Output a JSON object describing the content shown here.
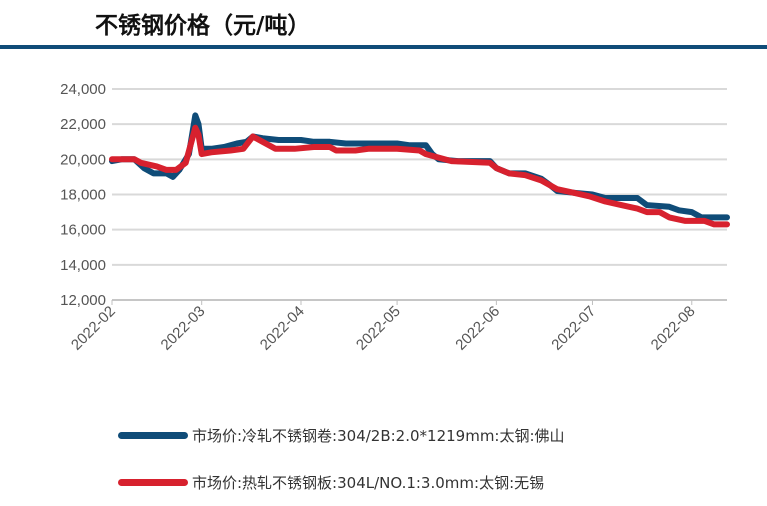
{
  "title": "不锈钢价格（元/吨）",
  "chart_data": {
    "type": "line",
    "title": "不锈钢价格（元/吨）",
    "ylim": [
      12000,
      24000
    ],
    "yticks": [
      "12,000",
      "14,000",
      "16,000",
      "18,000",
      "20,000",
      "22,000",
      "24,000"
    ],
    "xlim": [
      "2022-02-01",
      "2022-08-12"
    ],
    "xticks": [
      "2022-02",
      "2022-03",
      "2022-04",
      "2022-05",
      "2022-06",
      "2022-07",
      "2022-08"
    ],
    "grid": "horizontal",
    "legend_position": "bottom",
    "series": [
      {
        "name": "市场价:冷轧不锈钢卷:304/2B:2.0*1219mm:太钢:佛山",
        "color": "#0f4c78",
        "points": [
          [
            "2022-02-01",
            19900
          ],
          [
            "2022-02-04",
            20000
          ],
          [
            "2022-02-08",
            20000
          ],
          [
            "2022-02-11",
            19500
          ],
          [
            "2022-02-14",
            19200
          ],
          [
            "2022-02-18",
            19200
          ],
          [
            "2022-02-20",
            19000
          ],
          [
            "2022-02-22",
            19400
          ],
          [
            "2022-02-25",
            20300
          ],
          [
            "2022-02-27",
            22500
          ],
          [
            "2022-02-28",
            22000
          ],
          [
            "2022-03-01",
            20600
          ],
          [
            "2022-03-04",
            20600
          ],
          [
            "2022-03-08",
            20700
          ],
          [
            "2022-03-12",
            20900
          ],
          [
            "2022-03-15",
            21000
          ],
          [
            "2022-03-17",
            21300
          ],
          [
            "2022-03-20",
            21200
          ],
          [
            "2022-03-25",
            21100
          ],
          [
            "2022-04-01",
            21100
          ],
          [
            "2022-04-05",
            21000
          ],
          [
            "2022-04-10",
            21000
          ],
          [
            "2022-04-15",
            20900
          ],
          [
            "2022-05-01",
            20900
          ],
          [
            "2022-05-05",
            20800
          ],
          [
            "2022-05-10",
            20800
          ],
          [
            "2022-05-12",
            20300
          ],
          [
            "2022-05-14",
            20000
          ],
          [
            "2022-05-20",
            19900
          ],
          [
            "2022-05-30",
            19900
          ],
          [
            "2022-06-01",
            19500
          ],
          [
            "2022-06-05",
            19200
          ],
          [
            "2022-06-10",
            19200
          ],
          [
            "2022-06-15",
            18900
          ],
          [
            "2022-06-18",
            18500
          ],
          [
            "2022-06-20",
            18200
          ],
          [
            "2022-06-25",
            18100
          ],
          [
            "2022-07-01",
            18000
          ],
          [
            "2022-07-05",
            17800
          ],
          [
            "2022-07-15",
            17800
          ],
          [
            "2022-07-18",
            17400
          ],
          [
            "2022-07-25",
            17300
          ],
          [
            "2022-07-28",
            17100
          ],
          [
            "2022-08-01",
            17000
          ],
          [
            "2022-08-04",
            16700
          ],
          [
            "2022-08-12",
            16700
          ]
        ]
      },
      {
        "name": "市场价:热轧不锈钢板:304L/NO.1:3.0mm:太钢:无锡",
        "color": "#d7212e",
        "points": [
          [
            "2022-02-01",
            20000
          ],
          [
            "2022-02-08",
            20000
          ],
          [
            "2022-02-10",
            19800
          ],
          [
            "2022-02-15",
            19600
          ],
          [
            "2022-02-18",
            19400
          ],
          [
            "2022-02-21",
            19400
          ],
          [
            "2022-02-24",
            19800
          ],
          [
            "2022-02-27",
            21800
          ],
          [
            "2022-02-28",
            21400
          ],
          [
            "2022-03-01",
            20300
          ],
          [
            "2022-03-04",
            20400
          ],
          [
            "2022-03-10",
            20500
          ],
          [
            "2022-03-14",
            20600
          ],
          [
            "2022-03-17",
            21300
          ],
          [
            "2022-03-20",
            21000
          ],
          [
            "2022-03-24",
            20600
          ],
          [
            "2022-03-30",
            20600
          ],
          [
            "2022-04-05",
            20700
          ],
          [
            "2022-04-10",
            20700
          ],
          [
            "2022-04-12",
            20500
          ],
          [
            "2022-04-18",
            20500
          ],
          [
            "2022-04-22",
            20600
          ],
          [
            "2022-05-01",
            20600
          ],
          [
            "2022-05-08",
            20500
          ],
          [
            "2022-05-10",
            20300
          ],
          [
            "2022-05-14",
            20100
          ],
          [
            "2022-05-18",
            19900
          ],
          [
            "2022-05-30",
            19800
          ],
          [
            "2022-06-01",
            19500
          ],
          [
            "2022-06-05",
            19200
          ],
          [
            "2022-06-10",
            19100
          ],
          [
            "2022-06-15",
            18800
          ],
          [
            "2022-06-20",
            18300
          ],
          [
            "2022-06-25",
            18100
          ],
          [
            "2022-06-30",
            17900
          ],
          [
            "2022-07-05",
            17600
          ],
          [
            "2022-07-10",
            17400
          ],
          [
            "2022-07-15",
            17200
          ],
          [
            "2022-07-18",
            17000
          ],
          [
            "2022-07-22",
            17000
          ],
          [
            "2022-07-25",
            16700
          ],
          [
            "2022-07-30",
            16500
          ],
          [
            "2022-08-05",
            16500
          ],
          [
            "2022-08-08",
            16300
          ],
          [
            "2022-08-12",
            16300
          ]
        ]
      }
    ]
  }
}
